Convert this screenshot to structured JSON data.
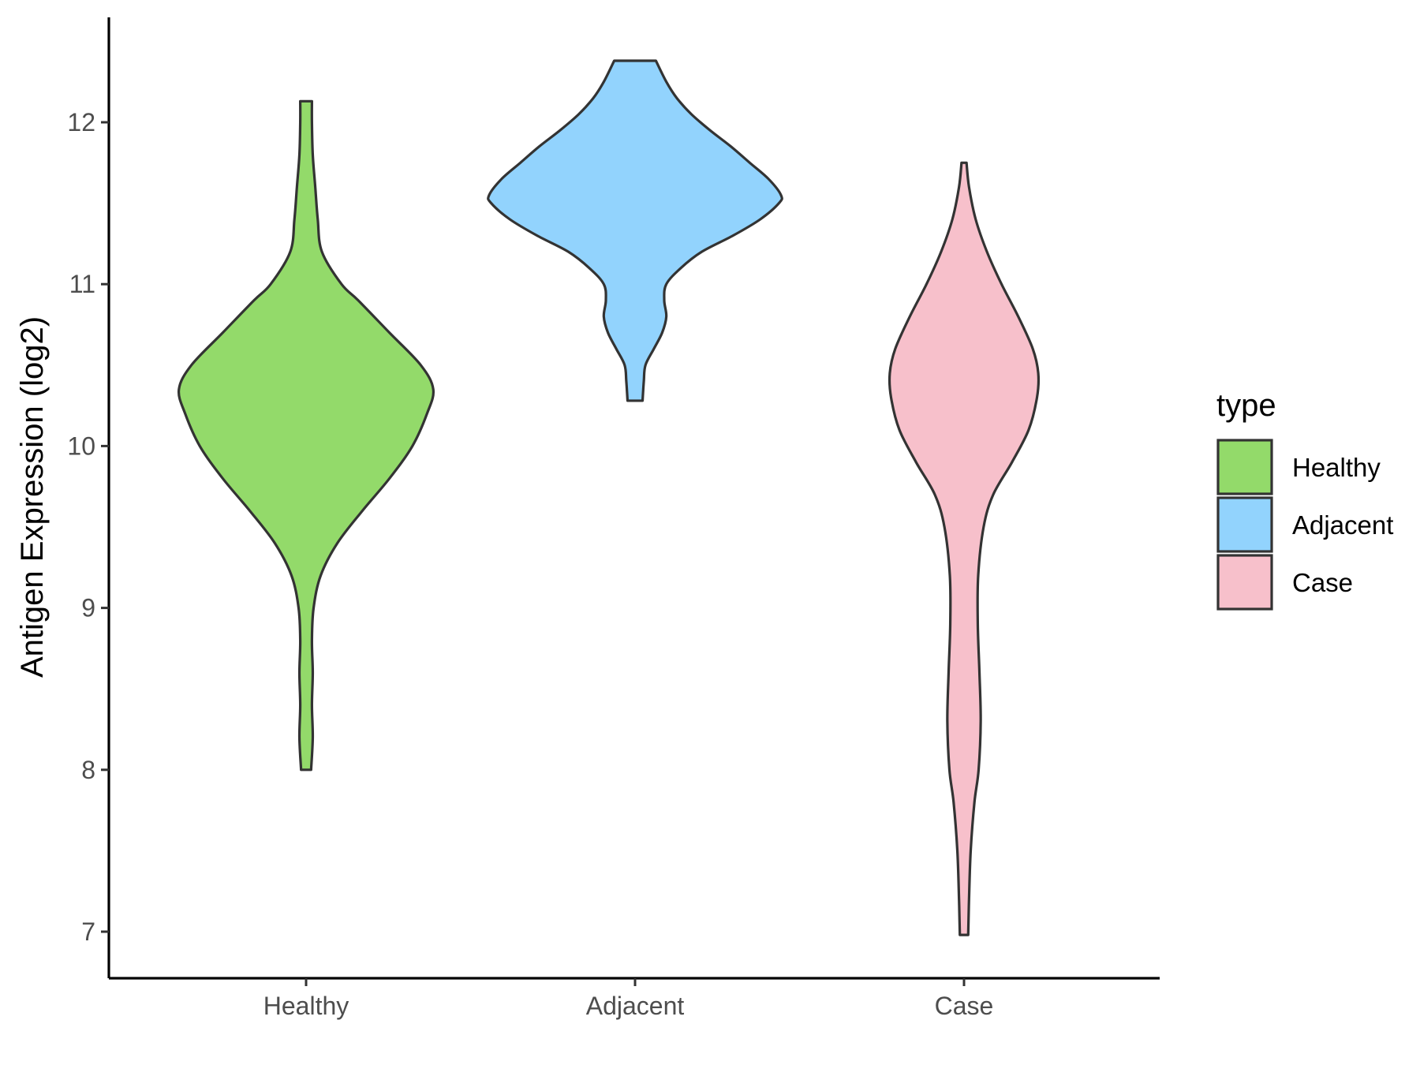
{
  "chart_data": {
    "type": "violin",
    "title": "",
    "xlabel": "",
    "ylabel": "Antigen Expression (log2)",
    "ylim": [
      6.8,
      12.65
    ],
    "yticks": [
      "7",
      "8",
      "9",
      "10",
      "11",
      "12"
    ],
    "categories": [
      "Healthy",
      "Adjacent",
      "Case"
    ],
    "grid": false,
    "legend": {
      "title": "type",
      "position": "right",
      "entries": [
        "Healthy",
        "Adjacent",
        "Case"
      ]
    },
    "series": [
      {
        "name": "Healthy",
        "color": "#93DA6A",
        "min": 8.0,
        "max": 12.13,
        "density": [
          [
            8.0,
            0.012
          ],
          [
            8.2,
            0.016
          ],
          [
            8.4,
            0.014
          ],
          [
            8.6,
            0.016
          ],
          [
            8.8,
            0.014
          ],
          [
            9.0,
            0.018
          ],
          [
            9.2,
            0.035
          ],
          [
            9.4,
            0.075
          ],
          [
            9.6,
            0.135
          ],
          [
            9.8,
            0.2
          ],
          [
            10.0,
            0.255
          ],
          [
            10.2,
            0.29
          ],
          [
            10.35,
            0.305
          ],
          [
            10.5,
            0.275
          ],
          [
            10.7,
            0.2
          ],
          [
            10.9,
            0.125
          ],
          [
            11.0,
            0.085
          ],
          [
            11.2,
            0.038
          ],
          [
            11.4,
            0.028
          ],
          [
            11.6,
            0.022
          ],
          [
            11.8,
            0.016
          ],
          [
            12.0,
            0.014
          ],
          [
            12.13,
            0.014
          ]
        ]
      },
      {
        "name": "Adjacent",
        "color": "#92D3FD",
        "min": 10.28,
        "max": 12.38,
        "density": [
          [
            10.28,
            0.018
          ],
          [
            10.4,
            0.021
          ],
          [
            10.5,
            0.025
          ],
          [
            10.6,
            0.045
          ],
          [
            10.7,
            0.065
          ],
          [
            10.8,
            0.075
          ],
          [
            10.9,
            0.07
          ],
          [
            11.0,
            0.075
          ],
          [
            11.1,
            0.11
          ],
          [
            11.2,
            0.16
          ],
          [
            11.3,
            0.235
          ],
          [
            11.4,
            0.3
          ],
          [
            11.5,
            0.345
          ],
          [
            11.55,
            0.35
          ],
          [
            11.65,
            0.32
          ],
          [
            11.75,
            0.275
          ],
          [
            11.85,
            0.23
          ],
          [
            11.95,
            0.18
          ],
          [
            12.05,
            0.135
          ],
          [
            12.15,
            0.1
          ],
          [
            12.25,
            0.075
          ],
          [
            12.38,
            0.05
          ]
        ]
      },
      {
        "name": "Case",
        "color": "#F7C0CB",
        "min": 6.98,
        "max": 11.75,
        "density": [
          [
            6.98,
            0.01
          ],
          [
            7.2,
            0.012
          ],
          [
            7.5,
            0.016
          ],
          [
            7.8,
            0.025
          ],
          [
            8.0,
            0.035
          ],
          [
            8.3,
            0.04
          ],
          [
            8.6,
            0.037
          ],
          [
            8.9,
            0.033
          ],
          [
            9.2,
            0.034
          ],
          [
            9.5,
            0.047
          ],
          [
            9.7,
            0.07
          ],
          [
            9.9,
            0.115
          ],
          [
            10.1,
            0.155
          ],
          [
            10.3,
            0.175
          ],
          [
            10.45,
            0.178
          ],
          [
            10.6,
            0.165
          ],
          [
            10.8,
            0.13
          ],
          [
            11.0,
            0.09
          ],
          [
            11.2,
            0.055
          ],
          [
            11.4,
            0.028
          ],
          [
            11.6,
            0.012
          ],
          [
            11.75,
            0.006
          ]
        ]
      }
    ]
  }
}
